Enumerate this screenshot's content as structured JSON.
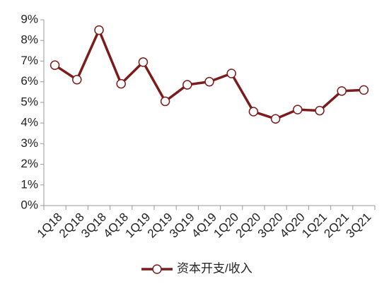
{
  "chart_data": {
    "type": "line",
    "categories": [
      "1Q18",
      "2Q18",
      "3Q18",
      "4Q18",
      "1Q19",
      "2Q19",
      "3Q19",
      "4Q19",
      "1Q20",
      "2Q20",
      "3Q20",
      "4Q20",
      "1Q21",
      "2Q21",
      "3Q21"
    ],
    "series": [
      {
        "name": "资本开支/收入",
        "color": "#7b1c1c",
        "values": [
          6.8,
          6.1,
          8.5,
          5.9,
          6.95,
          5.05,
          5.85,
          6.0,
          6.4,
          4.55,
          4.2,
          4.65,
          4.6,
          5.55,
          5.6
        ]
      }
    ],
    "ylim": [
      0,
      9
    ],
    "yticks": [
      {
        "value": 0,
        "label": "0%"
      },
      {
        "value": 1,
        "label": "1%"
      },
      {
        "value": 2,
        "label": "2%"
      },
      {
        "value": 3,
        "label": "3%"
      },
      {
        "value": 4,
        "label": "4%"
      },
      {
        "value": 5,
        "label": "5%"
      },
      {
        "value": 6,
        "label": "6%"
      },
      {
        "value": 7,
        "label": "7%"
      },
      {
        "value": 8,
        "label": "8%"
      },
      {
        "value": 9,
        "label": "9%"
      }
    ],
    "grid": false,
    "legend": "bottom"
  }
}
